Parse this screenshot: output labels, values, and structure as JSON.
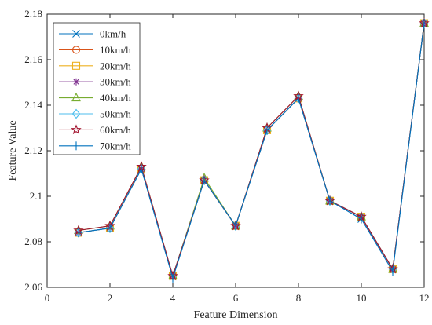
{
  "chart_data": {
    "type": "line",
    "title": "",
    "xlabel": "Feature Dimension",
    "ylabel": "Feature Value",
    "xlim": [
      0,
      12
    ],
    "ylim": [
      2.06,
      2.18
    ],
    "xticks": [
      0,
      2,
      4,
      6,
      8,
      10,
      12
    ],
    "xtick_labels": [
      "0",
      "2",
      "4",
      "6",
      "8",
      "10",
      "12"
    ],
    "yticks": [
      2.06,
      2.08,
      2.1,
      2.12,
      2.14,
      2.16,
      2.18
    ],
    "ytick_labels": [
      "2.06",
      "2.08",
      "2.1",
      "2.12",
      "2.14",
      "2.16",
      "2.18"
    ],
    "grid": false,
    "legend_position": "top-left",
    "x": [
      1,
      2,
      3,
      4,
      5,
      6,
      7,
      8,
      9,
      10,
      11,
      12
    ],
    "series": [
      {
        "name": "0km/h",
        "color": "#0072BD",
        "marker": "x",
        "values": [
          2.084,
          2.086,
          2.112,
          2.065,
          2.107,
          2.087,
          2.129,
          2.143,
          2.098,
          2.09,
          2.068,
          2.176
        ]
      },
      {
        "name": "10km/h",
        "color": "#D95319",
        "marker": "circle",
        "values": [
          2.084,
          2.086,
          2.112,
          2.065,
          2.107,
          2.087,
          2.129,
          2.143,
          2.098,
          2.091,
          2.068,
          2.176
        ]
      },
      {
        "name": "20km/h",
        "color": "#EDB120",
        "marker": "square",
        "values": [
          2.084,
          2.086,
          2.112,
          2.065,
          2.107,
          2.087,
          2.129,
          2.143,
          2.098,
          2.091,
          2.068,
          2.176
        ]
      },
      {
        "name": "30km/h",
        "color": "#7E2F8E",
        "marker": "asterisk",
        "values": [
          2.084,
          2.086,
          2.112,
          2.065,
          2.107,
          2.087,
          2.129,
          2.143,
          2.098,
          2.091,
          2.068,
          2.176
        ]
      },
      {
        "name": "40km/h",
        "color": "#77AC30",
        "marker": "triangle",
        "values": [
          2.085,
          2.087,
          2.113,
          2.065,
          2.108,
          2.087,
          2.13,
          2.144,
          2.098,
          2.091,
          2.068,
          2.176
        ]
      },
      {
        "name": "50km/h",
        "color": "#4DBEEE",
        "marker": "diamond",
        "values": [
          2.084,
          2.086,
          2.112,
          2.065,
          2.107,
          2.087,
          2.129,
          2.143,
          2.098,
          2.091,
          2.068,
          2.176
        ]
      },
      {
        "name": "60km/h",
        "color": "#A2142F",
        "marker": "star",
        "values": [
          2.085,
          2.087,
          2.113,
          2.065,
          2.107,
          2.087,
          2.13,
          2.144,
          2.098,
          2.091,
          2.068,
          2.176
        ]
      },
      {
        "name": "70km/h",
        "color": "#0072BD",
        "marker": "vline",
        "values": [
          2.084,
          2.086,
          2.112,
          2.064,
          2.107,
          2.087,
          2.129,
          2.143,
          2.098,
          2.09,
          2.067,
          2.176
        ]
      }
    ]
  }
}
